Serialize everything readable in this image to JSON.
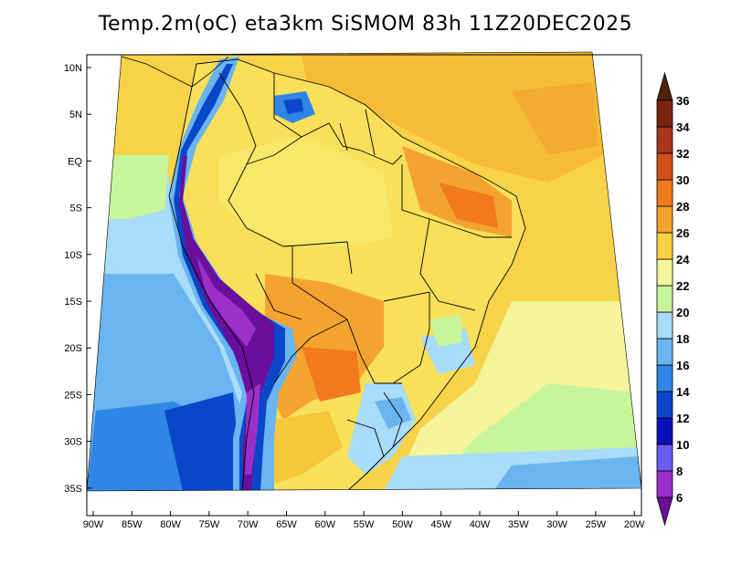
{
  "title": "Temp.2m(oC) eta3km SiSMOM 83h 11Z20DEC2025",
  "map": {
    "variable": "2 m temperature",
    "units": "oC",
    "lat_ticks": [
      "10N",
      "5N",
      "EQ",
      "5S",
      "10S",
      "15S",
      "20S",
      "25S",
      "30S",
      "35S"
    ],
    "lon_ticks": [
      "90W",
      "85W",
      "80W",
      "75W",
      "70W",
      "65W",
      "60W",
      "55W",
      "50W",
      "45W",
      "40W",
      "35W",
      "30W",
      "25W",
      "20W"
    ]
  },
  "colorbar": {
    "levels": [
      "6",
      "8",
      "10",
      "12",
      "14",
      "16",
      "18",
      "20",
      "22",
      "24",
      "26",
      "28",
      "30",
      "32",
      "34",
      "36"
    ],
    "colors": [
      "#6a0e9c",
      "#9a2fc9",
      "#6a5cf0",
      "#0a10b8",
      "#0a46c8",
      "#2f86e6",
      "#6ab4f0",
      "#a8dcf8",
      "#c8f49a",
      "#f4f49a",
      "#f8d240",
      "#f4a42e",
      "#f07a1c",
      "#d2501a",
      "#a8341c",
      "#7a2410",
      "#502008"
    ]
  }
}
